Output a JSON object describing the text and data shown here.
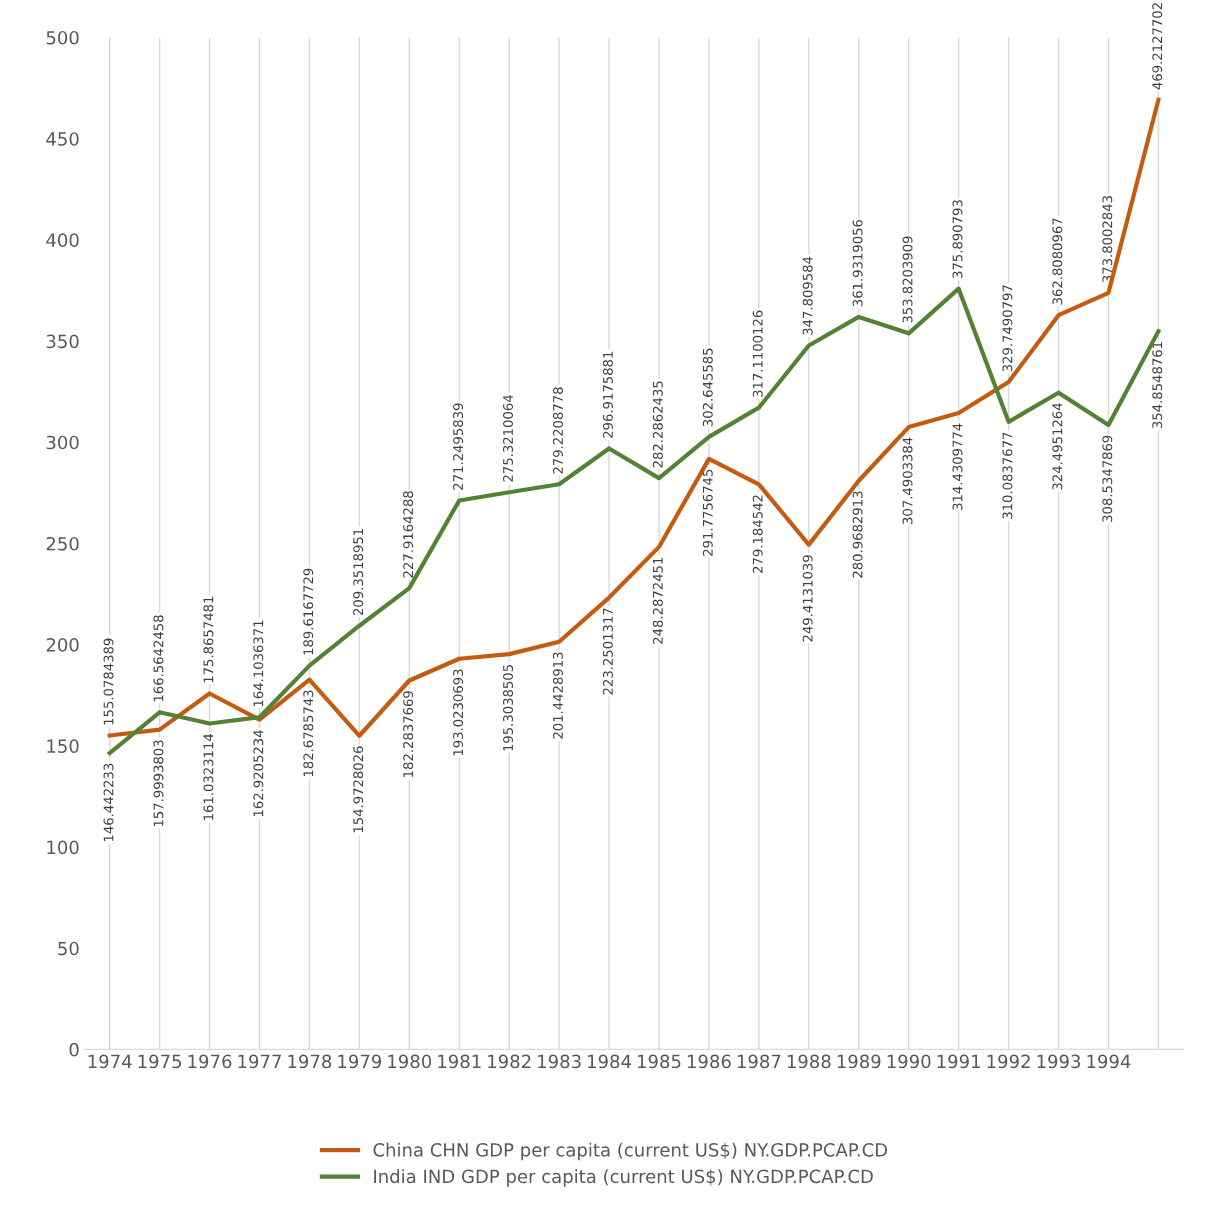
{
  "chart_data": {
    "type": "line",
    "categories": [
      "1974",
      "1975",
      "1976",
      "1977",
      "1978",
      "1979",
      "1980",
      "1981",
      "1982",
      "1983",
      "1984",
      "1985",
      "1986",
      "1987",
      "1988",
      "1989",
      "1990",
      "1991",
      "1992",
      "1993",
      "1994",
      null
    ],
    "series": [
      {
        "name": "China CHN GDP per capita (current US$) NY.GDP.PCAP.CD",
        "color": "#c55a11",
        "values": [
          155.0784389,
          157.9993803,
          175.8657481,
          162.9205234,
          182.6785743,
          154.9728026,
          182.2837669,
          193.0230693,
          195.3038505,
          201.4428913,
          223.2501317,
          248.2872451,
          291.7756745,
          279.184542,
          249.4131039,
          280.9682913,
          307.4903384,
          314.4309774,
          329.7490797,
          362.8080967,
          373.8002843,
          469.2127702
        ]
      },
      {
        "name": "India IND GDP per capita (current US$) NY.GDP.PCAP.CD",
        "color": "#548235",
        "values": [
          146.442233,
          166.5642458,
          161.0323114,
          164.1036371,
          189.6167729,
          209.3518951,
          227.9164288,
          271.2495839,
          275.3210064,
          279.2208778,
          296.9175881,
          282.2862435,
          302.645585,
          317.1100126,
          347.809584,
          361.9319056,
          353.8203909,
          375.890793,
          310.0837677,
          324.4951264,
          308.5347869,
          354.8548761
        ]
      }
    ],
    "ylim": [
      0,
      500
    ],
    "yticks": [
      0,
      50,
      100,
      150,
      200,
      250,
      300,
      350,
      400,
      450,
      500
    ],
    "grid": "x",
    "legend": "bottom",
    "data_labels": true,
    "marker": "none",
    "line_style": "solid"
  }
}
